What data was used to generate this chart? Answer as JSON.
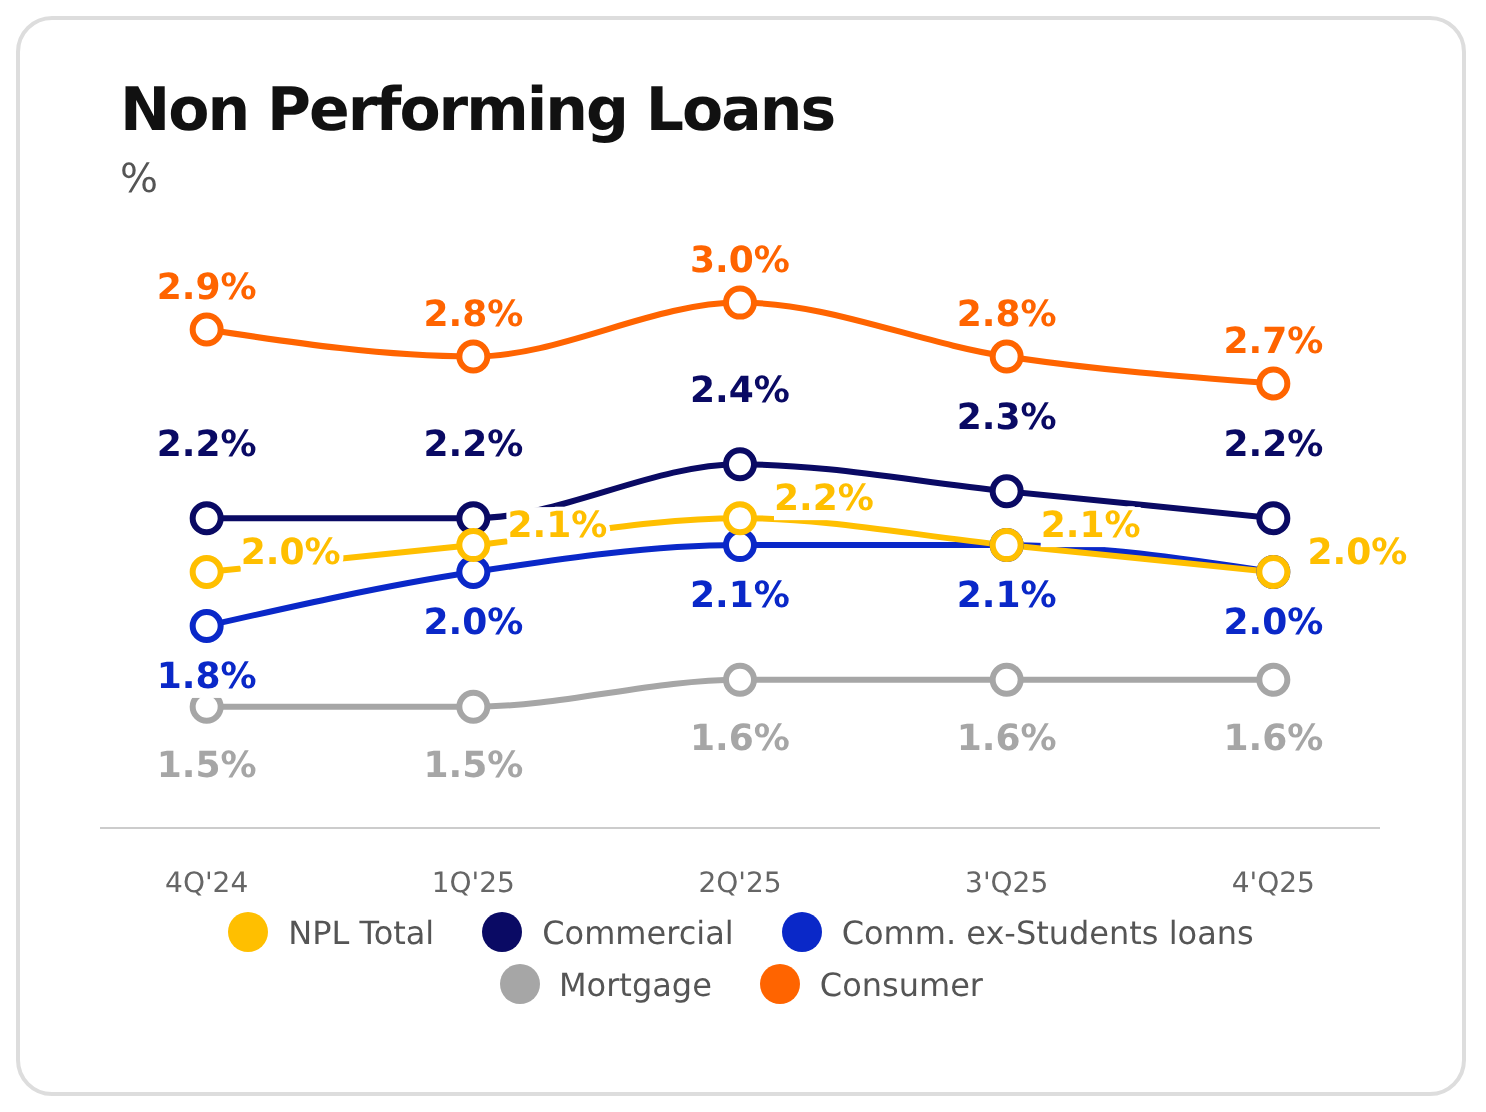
{
  "chart_data": {
    "type": "line",
    "title": "Non Performing Loans",
    "subtitle": "%",
    "categories": [
      "4Q'24",
      "1Q'25",
      "2Q'25",
      "3'Q25",
      "4'Q25"
    ],
    "series": [
      {
        "name": "NPL Total",
        "color": "#ffbf00",
        "values": [
          2.0,
          2.1,
          2.2,
          2.1,
          2.0
        ],
        "value_labels": [
          "2.0%",
          "2.1%",
          "2.2%",
          "2.1%",
          "2.0%"
        ]
      },
      {
        "name": "Commercial",
        "color": "#0a0a64",
        "values": [
          2.2,
          2.2,
          2.4,
          2.3,
          2.2
        ],
        "value_labels": [
          "2.2%",
          "2.2%",
          "2.4%",
          "2.3%",
          "2.2%"
        ]
      },
      {
        "name": "Comm. ex-Students loans",
        "color": "#0a28c8",
        "values": [
          1.8,
          2.0,
          2.1,
          2.1,
          2.0
        ],
        "value_labels": [
          "1.8%",
          "2.0%",
          "2.1%",
          "2.1%",
          "2.0%"
        ]
      },
      {
        "name": "Mortgage",
        "color": "#a6a6a6",
        "values": [
          1.5,
          1.5,
          1.6,
          1.6,
          1.6
        ],
        "value_labels": [
          "1.5%",
          "1.5%",
          "1.6%",
          "1.6%",
          "1.6%"
        ]
      },
      {
        "name": "Consumer",
        "color": "#ff6400",
        "values": [
          2.9,
          2.8,
          3.0,
          2.8,
          2.7
        ],
        "value_labels": [
          "2.9%",
          "2.8%",
          "3.0%",
          "2.8%",
          "2.7%"
        ]
      }
    ],
    "grid": false,
    "legend": "bottom",
    "marker": "circle",
    "line_style": "solid"
  }
}
